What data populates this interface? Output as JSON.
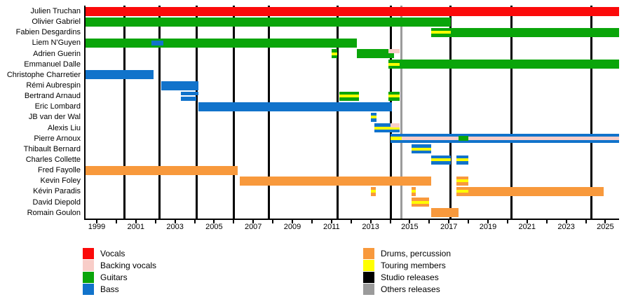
{
  "colors": {
    "vocals": "#fb0a0a",
    "backing": "#f8cdc8",
    "guitars": "#0aa50a",
    "bass": "#1173cb",
    "drums": "#f8993c",
    "touring": "#ffff00",
    "studio": "#000000",
    "others": "#9b9b9b"
  },
  "chart_data": {
    "type": "timeline",
    "title": "",
    "x_axis": {
      "min_year": 1998.4,
      "max_year": 2025.7,
      "tick_years": [
        1999,
        2000,
        2001,
        2002,
        2003,
        2004,
        2005,
        2006,
        2007,
        2008,
        2009,
        2010,
        2011,
        2012,
        2013,
        2014,
        2015,
        2016,
        2017,
        2018,
        2019,
        2020,
        2021,
        2022,
        2023,
        2024,
        2025
      ],
      "label_years": [
        1999,
        2001,
        2003,
        2005,
        2007,
        2009,
        2011,
        2013,
        2015,
        2017,
        2019,
        2021,
        2023,
        2025
      ]
    },
    "releases": {
      "studio_years": [
        2000.4,
        2002.2,
        2004.1,
        2006.0,
        2007.8,
        2011.3,
        2014.05,
        2017.1,
        2020.2,
        2024.3
      ],
      "other_years": [
        2014.56
      ]
    },
    "members": [
      {
        "name": "Julien Truchan",
        "segments": [
          {
            "from": 1998.4,
            "to": 2025.7,
            "role": "vocals",
            "pos": "full"
          }
        ]
      },
      {
        "name": "Olivier Gabriel",
        "segments": [
          {
            "from": 1998.4,
            "to": 2017.1,
            "role": "guitars",
            "pos": "full"
          }
        ]
      },
      {
        "name": "Fabien Desgardins",
        "segments": [
          {
            "from": 2016.1,
            "to": 2017.1,
            "role": "guitars",
            "pos": "full",
            "touring": true
          },
          {
            "from": 2017.1,
            "to": 2025.7,
            "role": "guitars",
            "pos": "full"
          }
        ]
      },
      {
        "name": "Liem N'Guyen",
        "segments": [
          {
            "from": 1998.4,
            "to": 2012.3,
            "role": "guitars",
            "pos": "full"
          },
          {
            "from": 2001.8,
            "to": 2002.4,
            "role": "bass",
            "pos": "mid"
          }
        ]
      },
      {
        "name": "Adrien Guerin",
        "segments": [
          {
            "from": 2011.0,
            "to": 2011.3,
            "role": "guitars",
            "pos": "full",
            "touring": true
          },
          {
            "from": 2012.3,
            "to": 2014.2,
            "role": "guitars",
            "pos": "full"
          },
          {
            "from": 2013.9,
            "to": 2014.5,
            "role": "backing",
            "pos": "half-top"
          }
        ]
      },
      {
        "name": "Emmanuel Dalle",
        "segments": [
          {
            "from": 2013.9,
            "to": 2014.5,
            "role": "guitars",
            "pos": "full",
            "touring": true
          },
          {
            "from": 2014.5,
            "to": 2025.7,
            "role": "guitars",
            "pos": "full"
          }
        ]
      },
      {
        "name": "Christophe Charretier",
        "segments": [
          {
            "from": 1998.4,
            "to": 2001.9,
            "role": "bass",
            "pos": "full"
          }
        ]
      },
      {
        "name": "Rémi Aubrespin",
        "segments": [
          {
            "from": 2002.3,
            "to": 2004.2,
            "role": "bass",
            "pos": "full"
          }
        ]
      },
      {
        "name": "Bertrand Arnaud",
        "segments": [
          {
            "from": 2003.3,
            "to": 2004.2,
            "role": "bass",
            "pos": "split-top"
          },
          {
            "from": 2003.3,
            "to": 2004.1,
            "role": "bass",
            "pos": "split-bottom"
          },
          {
            "from": 2011.4,
            "to": 2012.4,
            "role": "guitars",
            "pos": "full",
            "touring": true
          },
          {
            "from": 2013.9,
            "to": 2014.5,
            "role": "guitars",
            "pos": "full",
            "touring": true
          }
        ]
      },
      {
        "name": "Eric Lombard",
        "segments": [
          {
            "from": 2004.2,
            "to": 2014.1,
            "role": "bass",
            "pos": "full"
          }
        ]
      },
      {
        "name": "JB van der Wal",
        "segments": [
          {
            "from": 2013.0,
            "to": 2013.3,
            "role": "bass",
            "pos": "full",
            "touring": true
          }
        ]
      },
      {
        "name": "Alexis Liu",
        "segments": [
          {
            "from": 2013.2,
            "to": 2014.5,
            "role": "bass",
            "pos": "full",
            "touring": true
          },
          {
            "from": 2014.0,
            "to": 2014.5,
            "role": "backing",
            "pos": "half-top"
          }
        ]
      },
      {
        "name": "Pierre Arnoux",
        "segments": [
          {
            "from": 2014.0,
            "to": 2025.7,
            "role": "bass",
            "pos": "full"
          },
          {
            "from": 2014.0,
            "to": 2025.7,
            "role": "backing",
            "pos": "mid-thin"
          },
          {
            "from": 2014.0,
            "to": 2014.6,
            "role": "touring",
            "pos": "mid-thin"
          },
          {
            "from": 2017.5,
            "to": 2018.0,
            "role": "guitars",
            "pos": "mid"
          }
        ]
      },
      {
        "name": "Thibault Bernard",
        "segments": [
          {
            "from": 2015.1,
            "to": 2016.1,
            "role": "bass",
            "pos": "full",
            "touring": true
          }
        ]
      },
      {
        "name": "Charles Collette",
        "segments": [
          {
            "from": 2016.1,
            "to": 2017.1,
            "role": "bass",
            "pos": "full",
            "touring": true
          },
          {
            "from": 2017.4,
            "to": 2018.0,
            "role": "bass",
            "pos": "full",
            "touring": true
          }
        ]
      },
      {
        "name": "Fred Fayolle",
        "segments": [
          {
            "from": 1998.4,
            "to": 2006.2,
            "role": "drums",
            "pos": "full"
          }
        ]
      },
      {
        "name": "Kevin Foley",
        "segments": [
          {
            "from": 2006.3,
            "to": 2016.1,
            "role": "drums",
            "pos": "full"
          },
          {
            "from": 2017.4,
            "to": 2018.0,
            "role": "drums",
            "pos": "full",
            "touring": true
          }
        ]
      },
      {
        "name": "Kévin Paradis",
        "segments": [
          {
            "from": 2013.0,
            "to": 2013.25,
            "role": "drums",
            "pos": "full",
            "touring": true
          },
          {
            "from": 2015.1,
            "to": 2015.3,
            "role": "drums",
            "pos": "full",
            "touring": true
          },
          {
            "from": 2017.4,
            "to": 2018.0,
            "role": "drums",
            "pos": "full",
            "touring": true
          },
          {
            "from": 2018.0,
            "to": 2024.9,
            "role": "drums",
            "pos": "full"
          }
        ]
      },
      {
        "name": "David Diepold",
        "segments": [
          {
            "from": 2015.1,
            "to": 2016.0,
            "role": "drums",
            "pos": "full",
            "touring": true
          }
        ]
      },
      {
        "name": "Romain Goulon",
        "segments": [
          {
            "from": 2016.1,
            "to": 2017.5,
            "role": "drums",
            "pos": "full"
          }
        ]
      }
    ],
    "legend": {
      "left": [
        {
          "label": "Vocals",
          "key": "vocals"
        },
        {
          "label": "Backing vocals",
          "key": "backing"
        },
        {
          "label": "Guitars",
          "key": "guitars"
        },
        {
          "label": "Bass",
          "key": "bass"
        }
      ],
      "right": [
        {
          "label": "Drums, percussion",
          "key": "drums"
        },
        {
          "label": "Touring members",
          "key": "touring"
        },
        {
          "label": "Studio releases",
          "key": "studio"
        },
        {
          "label": "Others releases",
          "key": "others"
        }
      ]
    }
  }
}
